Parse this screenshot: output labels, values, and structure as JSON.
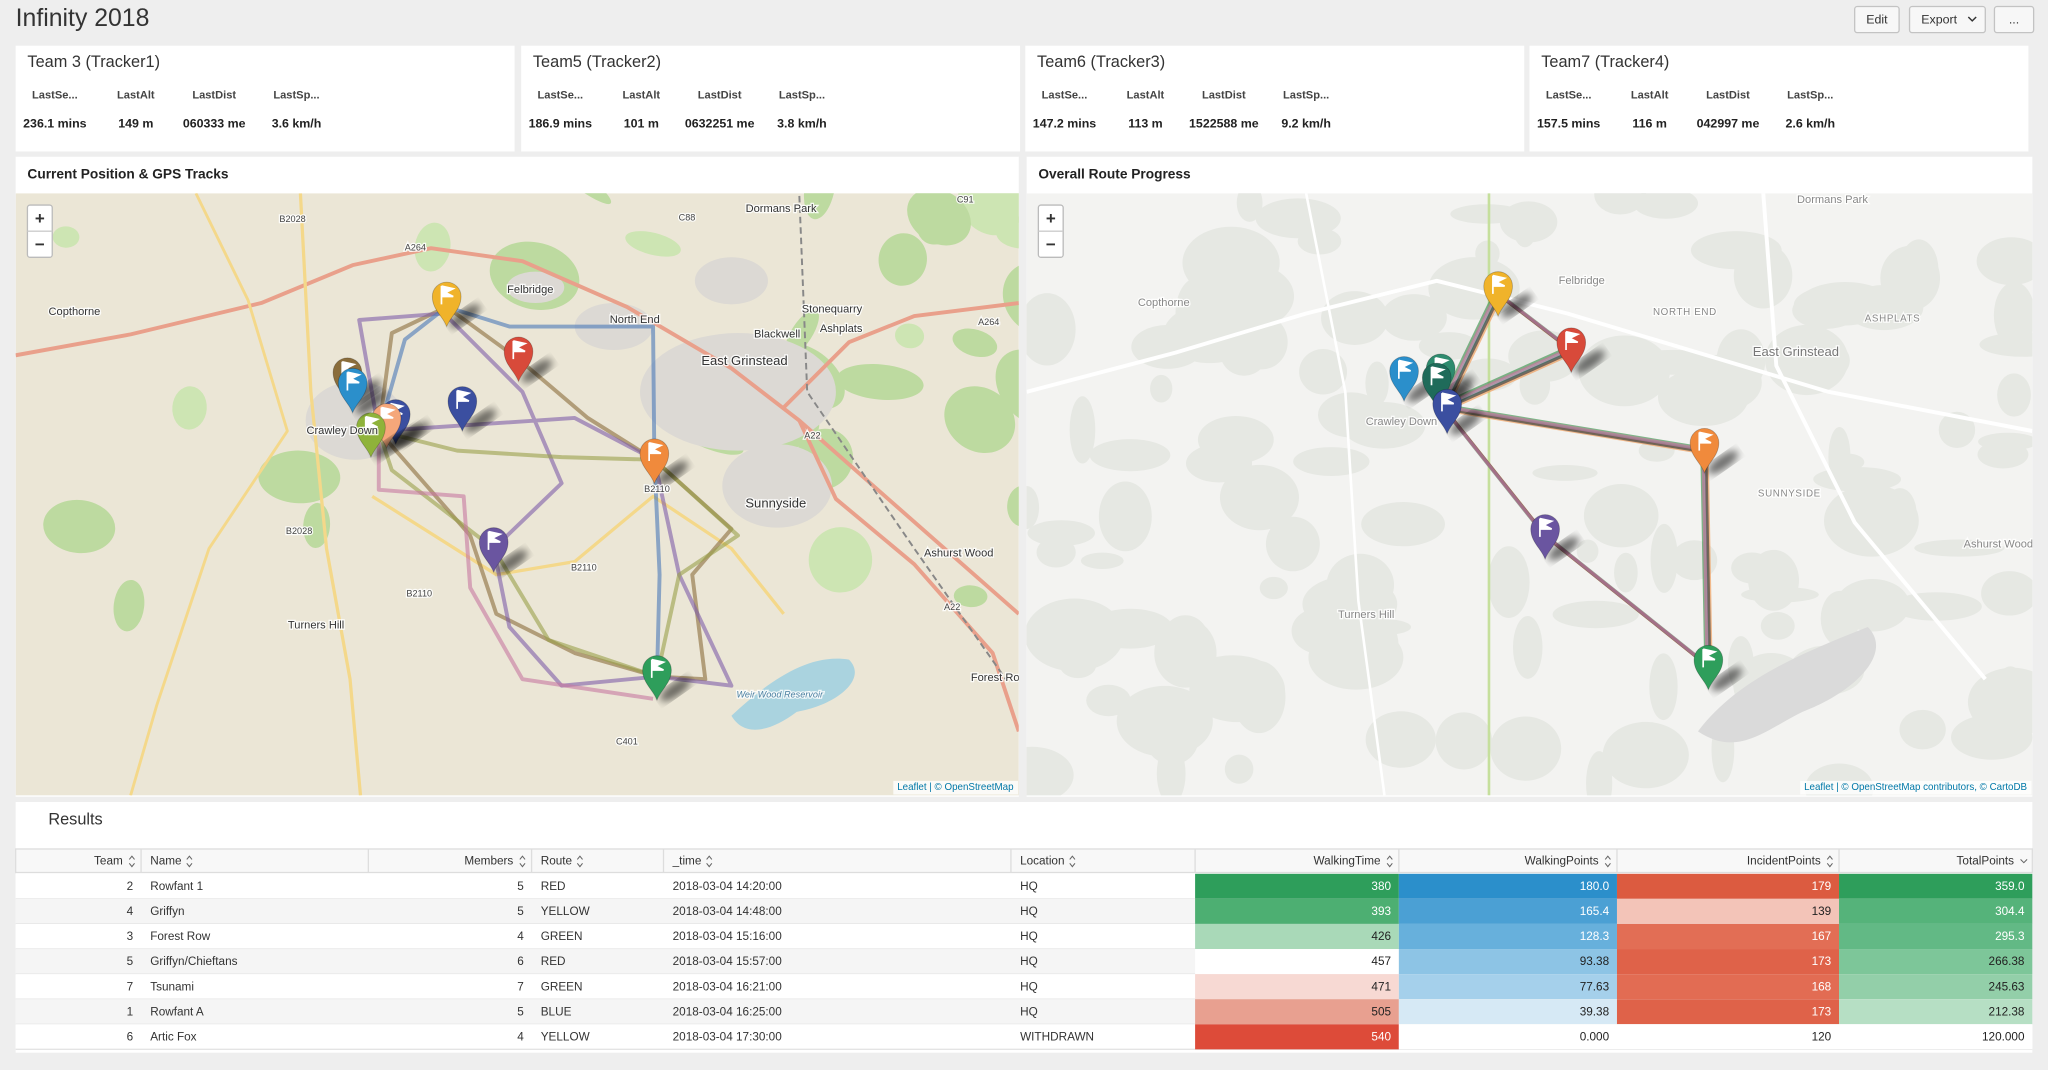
{
  "header": {
    "title": "Infinity 2018",
    "buttons": [
      "Edit",
      "Export",
      "..."
    ]
  },
  "stat_panels": [
    {
      "title": "Team 3 (Tracker1)",
      "labels": [
        "LastSe...",
        "LastAlt",
        "LastDist",
        "LastSp..."
      ],
      "values": [
        "236.1 mins",
        "149 m",
        "060333 me",
        "3.6 km/h"
      ]
    },
    {
      "title": "Team5 (Tracker2)",
      "labels": [
        "LastSe...",
        "LastAlt",
        "LastDist",
        "LastSp..."
      ],
      "values": [
        "186.9 mins",
        "101 m",
        "0632251 me",
        "3.8 km/h"
      ]
    },
    {
      "title": "Team6 (Tracker3)",
      "labels": [
        "LastSe...",
        "LastAlt",
        "LastDist",
        "LastSp..."
      ],
      "values": [
        "147.2 mins",
        "113 m",
        "1522588 me",
        "9.2 km/h"
      ]
    },
    {
      "title": "Team7 (Tracker4)",
      "labels": [
        "LastSe...",
        "LastAlt",
        "LastDist",
        "LastSp..."
      ],
      "values": [
        "157.5 mins",
        "116 m",
        "042997 me",
        "2.6 km/h"
      ]
    }
  ],
  "maps": [
    {
      "title": "Current Position & GPS Tracks",
      "zoom": [
        "+",
        "−"
      ],
      "attribution": "Leaflet | © OpenStreetMap",
      "labels": [
        "Copthorne",
        "Felbridge",
        "North End",
        "East Grinstead",
        "Blackwell",
        "Stonequarry",
        "Ashplats",
        "Dormans Park",
        "Sunnyside",
        "Ashurst Wood",
        "Turners Hill",
        "Forest Row",
        "Crawley Down",
        "B2028",
        "A264",
        "A22",
        "B2110",
        "C88",
        "C91",
        "A264",
        "B2110",
        "B2028",
        "B2110",
        "A22",
        "C401",
        "Weir Wood Reservoir"
      ]
    },
    {
      "title": "Overall Route Progress",
      "zoom": [
        "+",
        "−"
      ],
      "attribution": "Leaflet | © OpenStreetMap contributors, © CartoDB",
      "labels": [
        "Dormans Park",
        "Copthorne",
        "Felbridge",
        "NORTH END",
        "ASHPLATS",
        "East Grinstead",
        "Crawley Down",
        "SUNNYSIDE",
        "Ashurst Wood",
        "Turners Hill"
      ]
    }
  ],
  "results": {
    "title": "Results",
    "columns": [
      "Team",
      "Name",
      "Members",
      "Route",
      "_time",
      "Location",
      "WalkingTime",
      "WalkingPoints",
      "IncidentPoints",
      "TotalPoints"
    ],
    "rows": [
      [
        "2",
        "Rowfant 1",
        "5",
        "RED",
        "2018-03-04 14:20:00",
        "HQ",
        "380",
        "180.0",
        "179",
        "359.0"
      ],
      [
        "4",
        "Griffyn",
        "5",
        "YELLOW",
        "2018-03-04 14:48:00",
        "HQ",
        "393",
        "165.4",
        "139",
        "304.4"
      ],
      [
        "3",
        "Forest Row",
        "4",
        "GREEN",
        "2018-03-04 15:16:00",
        "HQ",
        "426",
        "128.3",
        "167",
        "295.3"
      ],
      [
        "5",
        "Griffyn/Chieftans",
        "6",
        "RED",
        "2018-03-04 15:57:00",
        "HQ",
        "457",
        "93.38",
        "173",
        "266.38"
      ],
      [
        "7",
        "Tsunami",
        "7",
        "GREEN",
        "2018-03-04 16:21:00",
        "HQ",
        "471",
        "77.63",
        "168",
        "245.63"
      ],
      [
        "1",
        "Rowfant A",
        "5",
        "BLUE",
        "2018-03-04 16:25:00",
        "HQ",
        "505",
        "39.38",
        "173",
        "212.38"
      ],
      [
        "6",
        "Artic Fox",
        "4",
        "YELLOW",
        "2018-03-04 17:30:00",
        "WITHDRAWN",
        "540",
        "0.000",
        "120",
        "120.000"
      ]
    ],
    "cell_colors": [
      [
        "#2e9e5b",
        "#2b8fcb",
        "#dc5b40",
        "#2e9e5b"
      ],
      [
        "#4daf72",
        "#4ba0d4",
        "#f3c4b8",
        "#55b37a"
      ],
      [
        "#a9d9b8",
        "#67b0dc",
        "#e26e55",
        "#62b985"
      ],
      [
        "#ffffff",
        "#8dc4e5",
        "#df6249",
        "#7dc699"
      ],
      [
        "#f7d9d3",
        "#a5d0eb",
        "#e26c53",
        "#93cfa9"
      ],
      [
        "#e8a090",
        "#d6e9f5",
        "#df6249",
        "#b6dfc4"
      ],
      [
        "#dd4b39",
        "#ffffff",
        "#ffffff",
        "#ffffff"
      ]
    ]
  }
}
